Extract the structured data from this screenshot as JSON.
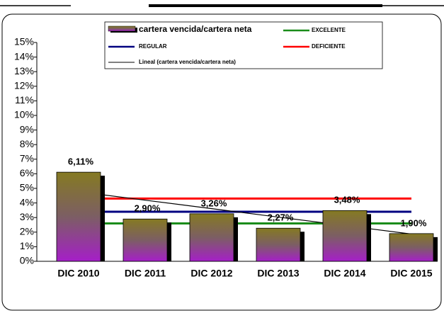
{
  "chart_data": {
    "type": "bar",
    "categories": [
      "DIC 2010",
      "DIC 2011",
      "DIC 2012",
      "DIC 2013",
      "DIC 2014",
      "DIC 2015"
    ],
    "series": [
      {
        "name": "cartera vencida/cartera neta",
        "type": "bar",
        "color": "#8a7a2a",
        "values": [
          6.11,
          2.9,
          3.26,
          2.27,
          3.48,
          1.9
        ],
        "value_labels": [
          "6,11%",
          "2,90%",
          "3,26%",
          "2,27%",
          "3,48%",
          "1,90%"
        ]
      },
      {
        "name": "EXCELENTE",
        "type": "line",
        "color": "#1a8c1a",
        "values": [
          2.6,
          2.6,
          2.6,
          2.6,
          2.6,
          2.6
        ]
      },
      {
        "name": "REGULAR",
        "type": "line",
        "color": "#000080",
        "values": [
          3.4,
          3.4,
          3.4,
          3.4,
          3.4,
          3.4
        ]
      },
      {
        "name": "DEFICIENTE",
        "type": "line",
        "color": "#ff0000",
        "values": [
          4.3,
          4.3,
          4.3,
          4.3,
          4.3,
          4.3
        ]
      },
      {
        "name": "Lineal (cartera vencida/cartera neta)",
        "type": "line",
        "color": "#000000",
        "values": [
          4.77,
          4.19,
          3.61,
          3.03,
          2.45,
          1.87
        ]
      }
    ],
    "ylim": [
      0,
      15
    ],
    "yticks": [
      {
        "value": 0,
        "label": "0%"
      },
      {
        "value": 1,
        "label": "1%"
      },
      {
        "value": 2,
        "label": "2%"
      },
      {
        "value": 3,
        "label": "3%"
      },
      {
        "value": 4,
        "label": "4%"
      },
      {
        "value": 5,
        "label": "5%"
      },
      {
        "value": 6,
        "label": "6%"
      },
      {
        "value": 7,
        "label": "7%"
      },
      {
        "value": 8,
        "label": "8%"
      },
      {
        "value": 9,
        "label": "9%"
      },
      {
        "value": 10,
        "label": "10%"
      },
      {
        "value": 11,
        "label": "11%"
      },
      {
        "value": 12,
        "label": "12%"
      },
      {
        "value": 13,
        "label": "13%"
      },
      {
        "value": 14,
        "label": "14%"
      },
      {
        "value": 15,
        "label": "15%"
      }
    ]
  }
}
